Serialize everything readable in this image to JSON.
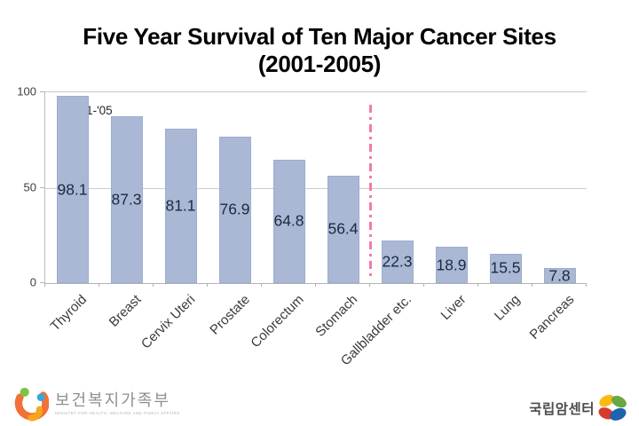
{
  "title": {
    "line1": "Five Year Survival of Ten Major Cancer Sites",
    "line2": "(2001-2005)"
  },
  "annotation": "'01-'05",
  "chart_data": {
    "type": "bar",
    "title": "Five Year Survival of Ten Major Cancer Sites (2001-2005)",
    "categories": [
      "Thyroid",
      "Breast",
      "Cervix Uteri",
      "Prostate",
      "Colorectum",
      "Stomach",
      "Gallbladder etc.",
      "Liver",
      "Lung",
      "Pancreas"
    ],
    "values": [
      98.1,
      87.3,
      81.1,
      76.9,
      64.8,
      56.4,
      22.3,
      18.9,
      15.5,
      7.8
    ],
    "xlabel": "",
    "ylabel": "",
    "ylim": [
      0,
      100
    ],
    "yticks": [
      "0",
      "50",
      "100"
    ],
    "ytick_values": [
      0,
      50,
      100
    ],
    "grid": "horizontal gridline at 50 only",
    "legend_position": "none",
    "bar_color": "#aab8d5",
    "value_label_color": "#1c2a3e",
    "divider_line": {
      "between": [
        "Stomach",
        "Gallbladder etc."
      ],
      "style": "dash-dot vertical",
      "color": "#f07ca8"
    },
    "annotations": [
      {
        "text": "'01-'05",
        "near": "Thyroid bar top"
      }
    ]
  },
  "footer": {
    "left_logo": {
      "name": "보건복지가족부",
      "subtext": "MINISTRY FOR HEALTH, WELFARE AND FAMILY AFFAIRS",
      "mark_colors": {
        "orange": "#f2703a",
        "yellow": "#f9a51a",
        "green": "#7fc241",
        "blue": "#3aa7dc"
      }
    },
    "right_logo": {
      "name": "국립암센터",
      "mark_colors": {
        "yellow": "#fdb913",
        "green": "#69a843",
        "blue": "#1f63ac",
        "red": "#d93a2b"
      }
    }
  }
}
